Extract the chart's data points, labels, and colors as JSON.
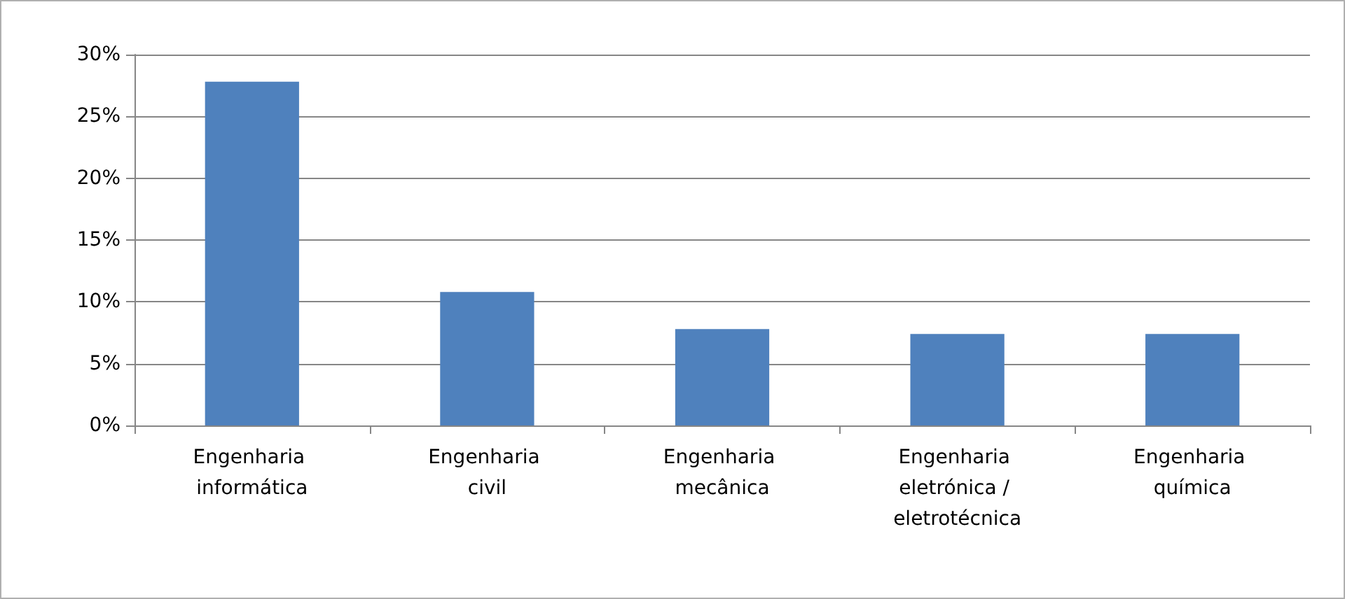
{
  "chart_data": {
    "type": "bar",
    "categories": [
      "Engenharia informática",
      "Engenharia civil",
      "Engenharia mecânica",
      "Engenharia eletrónica / eletrotécnica",
      "Engenharia química"
    ],
    "values": [
      27.8,
      10.8,
      7.8,
      7.4,
      7.4
    ],
    "color": "#4f81bd",
    "ylim": [
      0,
      30
    ],
    "yticks": [
      {
        "value": 0,
        "label": "0%"
      },
      {
        "value": 5,
        "label": "5%"
      },
      {
        "value": 10,
        "label": "10%"
      },
      {
        "value": 15,
        "label": "15%"
      },
      {
        "value": 20,
        "label": "20%"
      },
      {
        "value": 25,
        "label": "25%"
      },
      {
        "value": 30,
        "label": "30%"
      }
    ],
    "grid": "y"
  }
}
